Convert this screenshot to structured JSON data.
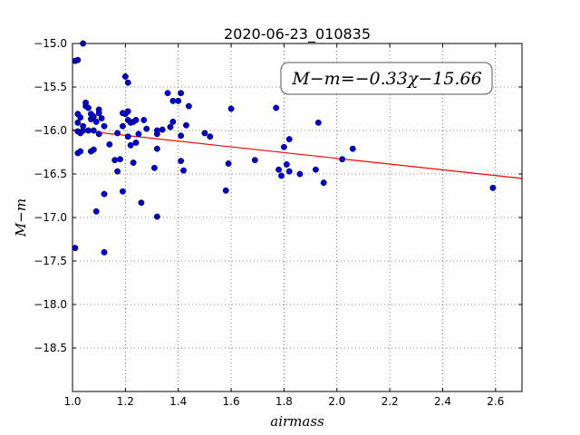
{
  "chart_data": {
    "type": "scatter",
    "title": "2020-06-23_010835",
    "xlabel": "airmass",
    "ylabel": "M−m",
    "xlim": [
      1.0,
      2.7
    ],
    "ylim": [
      -19.0,
      -15.0
    ],
    "y_inverted": true,
    "x_ticks": [
      "1.0",
      "1.2",
      "1.4",
      "1.6",
      "1.8",
      "2.0",
      "2.2",
      "2.4",
      "2.6"
    ],
    "y_ticks": [
      "−15.0",
      "−15.5",
      "−16.0",
      "−16.5",
      "−17.0",
      "−17.5",
      "−18.0",
      "−18.5"
    ],
    "grid": true,
    "annotation": "M−m=−0.33χ−15.66",
    "fit": {
      "slope": -0.33,
      "intercept": -15.66,
      "color": "#ff0000"
    },
    "point_color": "#0000cc",
    "points": [
      [
        1.01,
        -17.35
      ],
      [
        1.01,
        -15.2
      ],
      [
        1.02,
        -15.19
      ],
      [
        1.02,
        -15.81
      ],
      [
        1.02,
        -15.91
      ],
      [
        1.02,
        -16.01
      ],
      [
        1.02,
        -16.26
      ],
      [
        1.03,
        -16.24
      ],
      [
        1.03,
        -16.03
      ],
      [
        1.03,
        -15.85
      ],
      [
        1.04,
        -15.0
      ],
      [
        1.04,
        -15.95
      ],
      [
        1.04,
        -16.0
      ],
      [
        1.05,
        -15.68
      ],
      [
        1.05,
        -15.72
      ],
      [
        1.06,
        -15.74
      ],
      [
        1.06,
        -16.0
      ],
      [
        1.07,
        -15.81
      ],
      [
        1.07,
        -15.87
      ],
      [
        1.07,
        -16.24
      ],
      [
        1.08,
        -16.0
      ],
      [
        1.08,
        -16.22
      ],
      [
        1.08,
        -15.84
      ],
      [
        1.09,
        -16.93
      ],
      [
        1.09,
        -15.9
      ],
      [
        1.1,
        -15.76
      ],
      [
        1.1,
        -15.8
      ],
      [
        1.1,
        -16.04
      ],
      [
        1.11,
        -15.86
      ],
      [
        1.12,
        -16.73
      ],
      [
        1.12,
        -17.4
      ],
      [
        1.12,
        -15.95
      ],
      [
        1.14,
        -16.16
      ],
      [
        1.16,
        -16.34
      ],
      [
        1.17,
        -16.47
      ],
      [
        1.17,
        -16.03
      ],
      [
        1.18,
        -16.33
      ],
      [
        1.19,
        -15.8
      ],
      [
        1.19,
        -16.7
      ],
      [
        1.19,
        -15.95
      ],
      [
        1.2,
        -15.38
      ],
      [
        1.2,
        -15.81
      ],
      [
        1.21,
        -15.45
      ],
      [
        1.21,
        -15.88
      ],
      [
        1.21,
        -15.78
      ],
      [
        1.21,
        -16.07
      ],
      [
        1.22,
        -15.91
      ],
      [
        1.22,
        -16.17
      ],
      [
        1.23,
        -15.9
      ],
      [
        1.23,
        -16.37
      ],
      [
        1.24,
        -15.88
      ],
      [
        1.24,
        -16.14
      ],
      [
        1.25,
        -16.04
      ],
      [
        1.26,
        -16.83
      ],
      [
        1.27,
        -15.88
      ],
      [
        1.28,
        -15.98
      ],
      [
        1.31,
        -16.43
      ],
      [
        1.32,
        -16.04
      ],
      [
        1.32,
        -16.0
      ],
      [
        1.32,
        -16.99
      ],
      [
        1.32,
        -16.21
      ],
      [
        1.34,
        -15.99
      ],
      [
        1.36,
        -15.57
      ],
      [
        1.37,
        -15.96
      ],
      [
        1.38,
        -15.9
      ],
      [
        1.38,
        -15.66
      ],
      [
        1.4,
        -15.66
      ],
      [
        1.41,
        -15.57
      ],
      [
        1.41,
        -16.35
      ],
      [
        1.41,
        -16.06
      ],
      [
        1.42,
        -16.46
      ],
      [
        1.43,
        -15.94
      ],
      [
        1.44,
        -15.72
      ],
      [
        1.5,
        -16.03
      ],
      [
        1.52,
        -16.07
      ],
      [
        1.58,
        -16.69
      ],
      [
        1.59,
        -16.38
      ],
      [
        1.6,
        -15.75
      ],
      [
        1.69,
        -16.34
      ],
      [
        1.77,
        -15.74
      ],
      [
        1.78,
        -16.45
      ],
      [
        1.79,
        -16.52
      ],
      [
        1.8,
        -16.19
      ],
      [
        1.81,
        -16.39
      ],
      [
        1.82,
        -16.47
      ],
      [
        1.82,
        -16.1
      ],
      [
        1.86,
        -16.5
      ],
      [
        1.92,
        -16.45
      ],
      [
        1.93,
        -15.91
      ],
      [
        1.95,
        -16.6
      ],
      [
        2.02,
        -16.33
      ],
      [
        2.06,
        -16.21
      ],
      [
        2.59,
        -16.66
      ]
    ]
  }
}
